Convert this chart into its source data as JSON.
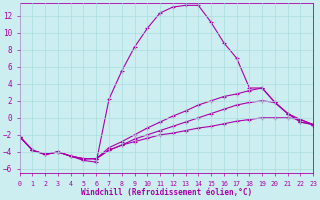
{
  "xlabel": "Windchill (Refroidissement éolien,°C)",
  "xlim": [
    0,
    23
  ],
  "ylim": [
    -6.5,
    13.5
  ],
  "yticks": [
    -6,
    -4,
    -2,
    0,
    2,
    4,
    6,
    8,
    10,
    12
  ],
  "xticks": [
    0,
    1,
    2,
    3,
    4,
    5,
    6,
    7,
    8,
    9,
    10,
    11,
    12,
    13,
    14,
    15,
    16,
    17,
    18,
    19,
    20,
    21,
    22,
    23
  ],
  "bg_color": "#cceef0",
  "grid_color": "#aadddd",
  "line_color": "#aa00aa",
  "lines": [
    {
      "x": [
        0,
        1,
        2,
        3,
        4,
        5,
        6,
        7,
        8,
        9,
        10,
        11,
        12,
        13,
        14,
        15,
        16,
        17,
        18,
        19,
        20,
        21,
        22,
        23
      ],
      "y": [
        -2.2,
        -3.8,
        -4.3,
        -4.0,
        -4.5,
        -5.0,
        -5.2,
        2.2,
        5.5,
        8.3,
        10.5,
        12.3,
        13.0,
        13.2,
        13.2,
        11.2,
        8.8,
        7.0,
        3.5,
        3.5,
        1.8,
        0.5,
        -0.5,
        -0.8
      ]
    },
    {
      "x": [
        0,
        1,
        2,
        3,
        4,
        5,
        6,
        7,
        8,
        9,
        10,
        11,
        12,
        13,
        14,
        15,
        16,
        17,
        18,
        19,
        20,
        21,
        22,
        23
      ],
      "y": [
        -2.2,
        -3.8,
        -4.3,
        -4.0,
        -4.5,
        -4.8,
        -4.8,
        -3.5,
        -2.8,
        -2.0,
        -1.2,
        -0.5,
        0.2,
        0.8,
        1.5,
        2.0,
        2.5,
        2.8,
        3.2,
        3.5,
        1.8,
        0.5,
        -0.5,
        -0.8
      ]
    },
    {
      "x": [
        0,
        1,
        2,
        3,
        4,
        5,
        6,
        7,
        8,
        9,
        10,
        11,
        12,
        13,
        14,
        15,
        16,
        17,
        18,
        19,
        20,
        21,
        22,
        23
      ],
      "y": [
        -2.2,
        -3.8,
        -4.3,
        -4.0,
        -4.5,
        -4.8,
        -4.8,
        -3.8,
        -3.2,
        -2.5,
        -2.0,
        -1.5,
        -1.0,
        -0.5,
        0.0,
        0.5,
        1.0,
        1.5,
        1.8,
        2.0,
        1.8,
        0.5,
        -0.2,
        -0.8
      ]
    },
    {
      "x": [
        0,
        1,
        2,
        3,
        4,
        5,
        6,
        7,
        8,
        9,
        10,
        11,
        12,
        13,
        14,
        15,
        16,
        17,
        18,
        19,
        20,
        21,
        22,
        23
      ],
      "y": [
        -2.2,
        -3.8,
        -4.3,
        -4.0,
        -4.5,
        -4.8,
        -4.8,
        -3.8,
        -3.2,
        -2.8,
        -2.4,
        -2.0,
        -1.8,
        -1.5,
        -1.2,
        -1.0,
        -0.7,
        -0.4,
        -0.2,
        0.0,
        0.0,
        0.0,
        -0.2,
        -0.8
      ]
    }
  ]
}
